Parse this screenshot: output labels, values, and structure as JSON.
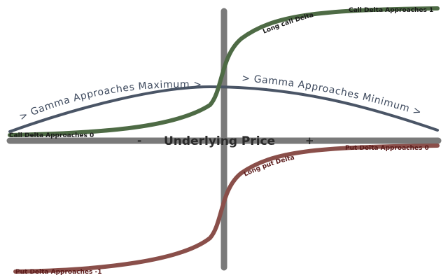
{
  "axis": {
    "x_label": "Underlying Price",
    "minus_sign": "-",
    "plus_sign": "+"
  },
  "call": {
    "curve_label": "Long call Delta",
    "upper_label": "Call Delta Approaches 1",
    "lower_label": "Call Delta Approaches 0"
  },
  "put": {
    "curve_label": "Long put Delta",
    "upper_label": "Put Delta Approaches 0",
    "lower_label": "Put Delta Approaches -1"
  },
  "gamma": {
    "left_label": "> Gamma Approaches Maximum >",
    "right_label": "> Gamma Approaches Minimum >"
  },
  "colors": {
    "axis": "#7a7a7a",
    "call_curve": "#4e6b45",
    "put_curve": "#8a4f4a",
    "gamma_curve": "#4a5566",
    "call_text": "#1a1a1a",
    "put_text": "#5a1a1a",
    "gamma_text": "#3e4a5e",
    "axis_text": "#2a2a2a"
  }
}
